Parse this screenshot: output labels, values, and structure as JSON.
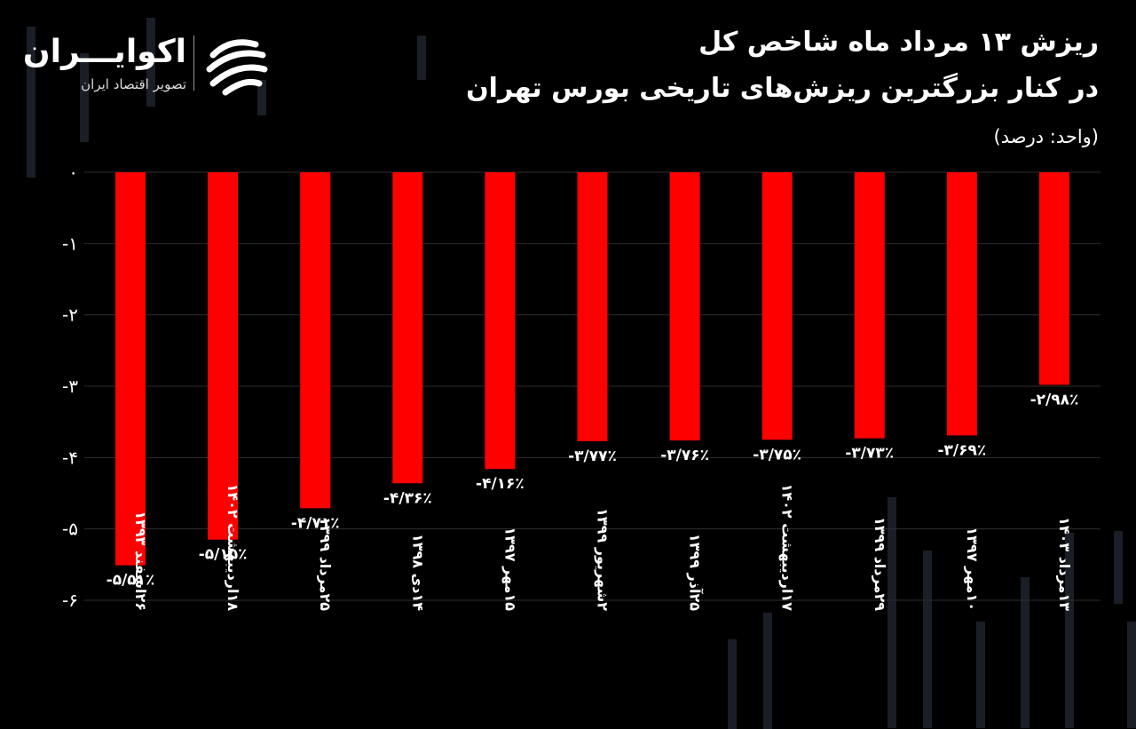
{
  "header": {
    "title_line1": "ریزش ۱۳ مرداد ماه شاخص کل",
    "title_line2": "در کنار بزرگترین ریزش‌های تاریخی بورس تهران",
    "unit": "(واحد: درصد)"
  },
  "brand": {
    "name": "اکوایـــران",
    "tagline": "تصویر اقتصاد ایران",
    "logo_icon": "ecoiran-logo-icon"
  },
  "colors": {
    "background": "#000000",
    "bar": "#ff0000",
    "grid": "#2e2e2e",
    "text": "#ffffff"
  },
  "chart_data": {
    "type": "bar",
    "title": "",
    "xlabel": "",
    "ylabel": "",
    "ylim": [
      -6,
      0
    ],
    "y_ticks": [
      "۰",
      "-۱",
      "-۲",
      "-۳",
      "-۴",
      "-۵",
      "-۶"
    ],
    "categories": [
      "۲۶اسفند ۱۳۹۳",
      "۱۸اردیبهشت ۱۴۰۲",
      "۲۵مرداد ۱۳۹۹",
      "۱۴دی ۱۳۹۸",
      "۱۵مهر ۱۳۹۷",
      "۲شهریور ۱۳۹۹",
      "۲۵آذر ۱۳۹۹",
      "۱۷اردیبهشت ۱۴۰۲",
      "۲۹مرداد ۱۳۹۹",
      "۱۰مهر ۱۳۹۷",
      "۱۳مرداد ۱۴۰۳"
    ],
    "values": [
      -5.51,
      -5.15,
      -4.71,
      -4.36,
      -4.16,
      -3.77,
      -3.76,
      -3.75,
      -3.73,
      -3.69,
      -2.98
    ],
    "data_labels": [
      "-۵/۵۱٪",
      "-۵/۱۵٪",
      "-۴/۷۱٪",
      "-۴/۳۶٪",
      "-۴/۱۶٪",
      "-۳/۷۷٪",
      "-۳/۷۶٪",
      "-۳/۷۵٪",
      "-۳/۷۳٪",
      "-۳/۶۹٪",
      "-۲/۹۸٪"
    ],
    "grid": true,
    "legend": "none"
  }
}
